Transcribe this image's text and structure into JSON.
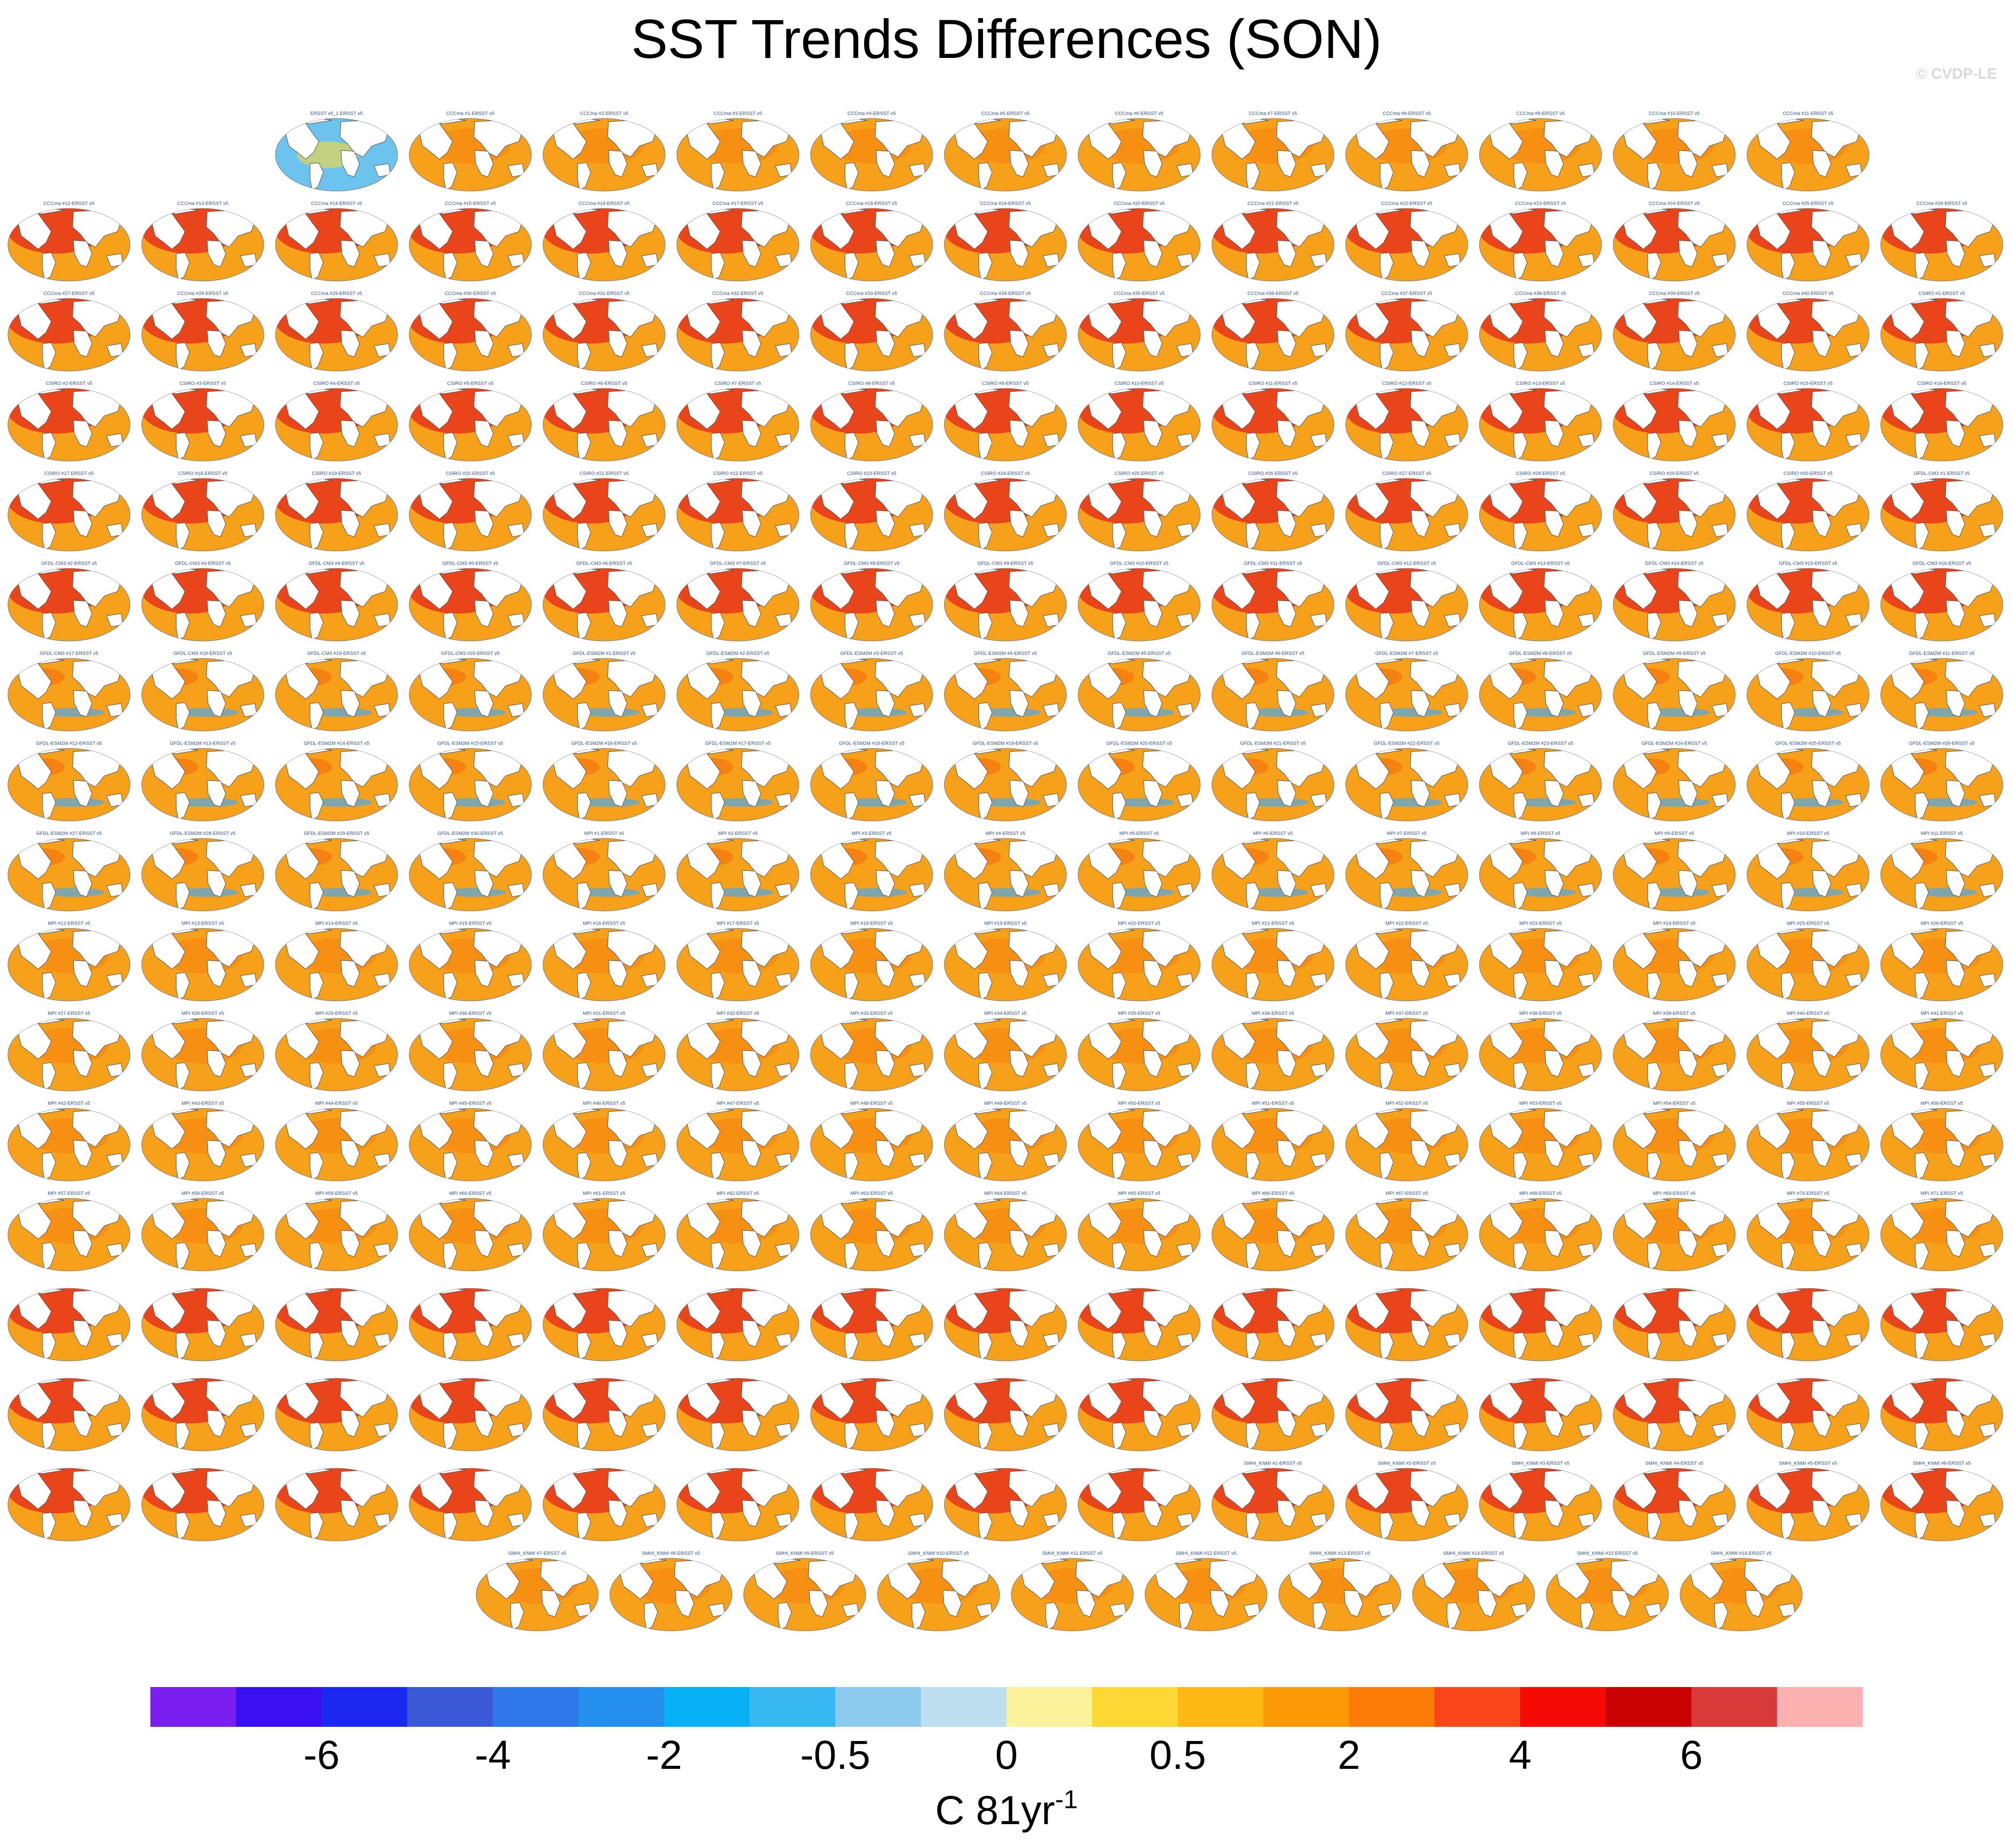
{
  "figure": {
    "title": "SST Trends Differences (SON)",
    "watermark": "© CVDP-LE"
  },
  "colors": {
    "ocean_warm": "#f7a11a",
    "ocean_hot": "#e8341c",
    "ocean_cool": "#6cc3ee",
    "land": "#ffffff",
    "coast": "#555555"
  },
  "chart_data": {
    "type": "heatmap",
    "title": "SST Trends Differences (SON)",
    "panel_type": "global map (Robinson projection)",
    "rows": [
      {
        "row": 1,
        "panels": [
          "ERSST v5_1-ERSST v5",
          "CCCma #1-ERSST v5",
          "CCCma #2-ERSST v5",
          "CCCma #3-ERSST v5",
          "CCCma #4-ERSST v5",
          "CCCma #5-ERSST v5",
          "CCCma #6-ERSST v5",
          "CCCma #7-ERSST v5",
          "CCCma #8-ERSST v5",
          "CCCma #9-ERSST v5",
          "CCCma #10-ERSST v5",
          "CCCma #11-ERSST v5"
        ]
      },
      {
        "row": 2,
        "panels": [
          "CCCma #12-ERSST v5",
          "CCCma #13-ERSST v5",
          "CCCma #14-ERSST v5",
          "CCCma #15-ERSST v5",
          "CCCma #16-ERSST v5",
          "CCCma #17-ERSST v5",
          "CCCma #18-ERSST v5",
          "CCCma #19-ERSST v5",
          "CCCma #20-ERSST v5",
          "CCCma #21-ERSST v5",
          "CCCma #22-ERSST v5",
          "CCCma #23-ERSST v5",
          "CCCma #24-ERSST v5",
          "CCCma #25-ERSST v5",
          "CCCma #26-ERSST v5"
        ]
      },
      {
        "row": 3,
        "panels": [
          "CCCma #27-ERSST v5",
          "CCCma #28-ERSST v5",
          "CCCma #29-ERSST v5",
          "CCCma #30-ERSST v5",
          "CCCma #31-ERSST v5",
          "CCCma #32-ERSST v5",
          "CCCma #33-ERSST v5",
          "CCCma #34-ERSST v5",
          "CCCma #35-ERSST v5",
          "CCCma #36-ERSST v5",
          "CCCma #37-ERSST v5",
          "CCCma #38-ERSST v5",
          "CCCma #39-ERSST v5",
          "CCCma #40-ERSST v5",
          "CSIRO #1-ERSST v5"
        ]
      },
      {
        "row": 4,
        "panels": [
          "CSIRO #2-ERSST v5",
          "CSIRO #3-ERSST v5",
          "CSIRO #4-ERSST v5",
          "CSIRO #5-ERSST v5",
          "CSIRO #6-ERSST v5",
          "CSIRO #7-ERSST v5",
          "CSIRO #8-ERSST v5",
          "CSIRO #9-ERSST v5",
          "CSIRO #10-ERSST v5",
          "CSIRO #11-ERSST v5",
          "CSIRO #12-ERSST v5",
          "CSIRO #13-ERSST v5",
          "CSIRO #14-ERSST v5",
          "CSIRO #15-ERSST v5",
          "CSIRO #16-ERSST v5"
        ]
      },
      {
        "row": 5,
        "panels": [
          "CSIRO #17-ERSST v5",
          "CSIRO #18-ERSST v5",
          "CSIRO #19-ERSST v5",
          "CSIRO #20-ERSST v5",
          "CSIRO #21-ERSST v5",
          "CSIRO #22-ERSST v5",
          "CSIRO #23-ERSST v5",
          "CSIRO #24-ERSST v5",
          "CSIRO #25-ERSST v5",
          "CSIRO #26-ERSST v5",
          "CSIRO #27-ERSST v5",
          "CSIRO #28-ERSST v5",
          "CSIRO #29-ERSST v5",
          "CSIRO #30-ERSST v5",
          "GFDL-CM3 #1-ERSST v5"
        ]
      },
      {
        "row": 6,
        "panels": [
          "GFDL-CM3 #2-ERSST v5",
          "GFDL-CM3 #3-ERSST v5",
          "GFDL-CM3 #4-ERSST v5",
          "GFDL-CM3 #5-ERSST v5",
          "GFDL-CM3 #6-ERSST v5",
          "GFDL-CM3 #7-ERSST v5",
          "GFDL-CM3 #8-ERSST v5",
          "GFDL-CM3 #9-ERSST v5",
          "GFDL-CM3 #10-ERSST v5",
          "GFDL-CM3 #11-ERSST v5",
          "GFDL-CM3 #12-ERSST v5",
          "GFDL-CM3 #13-ERSST v5",
          "GFDL-CM3 #14-ERSST v5",
          "GFDL-CM3 #15-ERSST v5",
          "GFDL-CM3 #16-ERSST v5"
        ]
      },
      {
        "row": 7,
        "panels": [
          "GFDL-CM3 #17-ERSST v5",
          "GFDL-CM3 #18-ERSST v5",
          "GFDL-CM3 #19-ERSST v5",
          "GFDL-CM3 #20-ERSST v5",
          "GFDL-ESM2M #1-ERSST v5",
          "GFDL-ESM2M #2-ERSST v5",
          "GFDL-ESM2M #3-ERSST v5",
          "GFDL-ESM2M #4-ERSST v5",
          "GFDL-ESM2M #5-ERSST v5",
          "GFDL-ESM2M #6-ERSST v5",
          "GFDL-ESM2M #7-ERSST v5",
          "GFDL-ESM2M #8-ERSST v5",
          "GFDL-ESM2M #9-ERSST v5",
          "GFDL-ESM2M #10-ERSST v5",
          "GFDL-ESM2M #11-ERSST v5"
        ]
      },
      {
        "row": 8,
        "panels": [
          "GFDL-ESM2M #12-ERSST v5",
          "GFDL-ESM2M #13-ERSST v5",
          "GFDL-ESM2M #14-ERSST v5",
          "GFDL-ESM2M #15-ERSST v5",
          "GFDL-ESM2M #16-ERSST v5",
          "GFDL-ESM2M #17-ERSST v5",
          "GFDL-ESM2M #18-ERSST v5",
          "GFDL-ESM2M #19-ERSST v5",
          "GFDL-ESM2M #20-ERSST v5",
          "GFDL-ESM2M #21-ERSST v5",
          "GFDL-ESM2M #22-ERSST v5",
          "GFDL-ESM2M #23-ERSST v5",
          "GFDL-ESM2M #24-ERSST v5",
          "GFDL-ESM2M #25-ERSST v5",
          "GFDL-ESM2M #26-ERSST v5"
        ]
      },
      {
        "row": 9,
        "panels": [
          "GFDL-ESM2M #27-ERSST v5",
          "GFDL-ESM2M #28-ERSST v5",
          "GFDL-ESM2M #29-ERSST v5",
          "GFDL-ESM2M #30-ERSST v5",
          "MPI #1-ERSST v5",
          "MPI #2-ERSST v5",
          "MPI #3-ERSST v5",
          "MPI #4-ERSST v5",
          "MPI #5-ERSST v5",
          "MPI #6-ERSST v5",
          "MPI #7-ERSST v5",
          "MPI #8-ERSST v5",
          "MPI #9-ERSST v5",
          "MPI #10-ERSST v5",
          "MPI #11-ERSST v5"
        ]
      },
      {
        "row": 10,
        "panels": [
          "MPI #12-ERSST v5",
          "MPI #13-ERSST v5",
          "MPI #14-ERSST v5",
          "MPI #15-ERSST v5",
          "MPI #16-ERSST v5",
          "MPI #17-ERSST v5",
          "MPI #18-ERSST v5",
          "MPI #19-ERSST v5",
          "MPI #20-ERSST v5",
          "MPI #21-ERSST v5",
          "MPI #22-ERSST v5",
          "MPI #23-ERSST v5",
          "MPI #24-ERSST v5",
          "MPI #25-ERSST v5",
          "MPI #26-ERSST v5"
        ]
      },
      {
        "row": 11,
        "panels": [
          "MPI #27-ERSST v5",
          "MPI #28-ERSST v5",
          "MPI #29-ERSST v5",
          "MPI #30-ERSST v5",
          "MPI #31-ERSST v5",
          "MPI #32-ERSST v5",
          "MPI #33-ERSST v5",
          "MPI #34-ERSST v5",
          "MPI #35-ERSST v5",
          "MPI #36-ERSST v5",
          "MPI #37-ERSST v5",
          "MPI #38-ERSST v5",
          "MPI #39-ERSST v5",
          "MPI #40-ERSST v5",
          "MPI #41-ERSST v5"
        ]
      },
      {
        "row": 12,
        "panels": [
          "MPI #42-ERSST v5",
          "MPI #43-ERSST v5",
          "MPI #44-ERSST v5",
          "MPI #45-ERSST v5",
          "MPI #46-ERSST v5",
          "MPI #47-ERSST v5",
          "MPI #48-ERSST v5",
          "MPI #49-ERSST v5",
          "MPI #50-ERSST v5",
          "MPI #51-ERSST v5",
          "MPI #52-ERSST v5",
          "MPI #53-ERSST v5",
          "MPI #54-ERSST v5",
          "MPI #55-ERSST v5",
          "MPI #56-ERSST v5"
        ]
      },
      {
        "row": 13,
        "panels": [
          "MPI #57-ERSST v5",
          "MPI #58-ERSST v5",
          "MPI #59-ERSST v5",
          "MPI #60-ERSST v5",
          "MPI #61-ERSST v5",
          "MPI #62-ERSST v5",
          "MPI #63-ERSST v5",
          "MPI #64-ERSST v5",
          "MPI #65-ERSST v5",
          "MPI #66-ERSST v5",
          "MPI #67-ERSST v5",
          "MPI #68-ERSST v5",
          "MPI #69-ERSST v5",
          "MPI #70-ERSST v5",
          "MPI #71-ERSST v5"
        ]
      },
      {
        "row": 14,
        "panels": [
          "",
          "",
          "",
          "",
          "",
          "",
          "",
          "",
          "",
          "",
          "",
          "",
          "",
          "",
          ""
        ]
      },
      {
        "row": 15,
        "panels": [
          "",
          "",
          "",
          "",
          "",
          "",
          "",
          "",
          "",
          "",
          "",
          "",
          "",
          "",
          ""
        ]
      },
      {
        "row": 16,
        "panels": [
          "",
          "",
          "",
          "",
          "",
          "",
          "",
          "",
          "",
          "SMHI_KNMI #1-ERSST v5",
          "SMHI_KNMI #2-ERSST v5",
          "SMHI_KNMI #3-ERSST v5",
          "SMHI_KNMI #4-ERSST v5",
          "SMHI_KNMI #5-ERSST v5",
          "SMHI_KNMI #6-ERSST v5"
        ]
      },
      {
        "row": 17,
        "panels": [
          "SMHI_KNMI #7-ERSST v5",
          "SMHI_KNMI #8-ERSST v5",
          "SMHI_KNMI #9-ERSST v5",
          "SMHI_KNMI #10-ERSST v5",
          "SMHI_KNMI #11-ERSST v5",
          "SMHI_KNMI #12-ERSST v5",
          "SMHI_KNMI #13-ERSST v5",
          "SMHI_KNMI #14-ERSST v5",
          "SMHI_KNMI #15-ERSST v5",
          "SMHI_KNMI #16-ERSST v5"
        ]
      }
    ],
    "panel_style": {
      "obs_cool": [
        1
      ],
      "cccma_csiro_gfdlcm3_hot": [
        2,
        3,
        4,
        5,
        6
      ],
      "gfdl_esm2m_mixed": [
        7,
        8,
        9
      ],
      "mpi_warm": [
        9,
        10,
        11,
        12,
        13
      ],
      "hot_north": [
        14,
        15,
        16
      ]
    },
    "colorbar": {
      "colors": [
        "#7b1ff0",
        "#3a10f0",
        "#1a28f0",
        "#3c5ad8",
        "#2f78ea",
        "#2590f0",
        "#08b0f5",
        "#38b8f0",
        "#8ccaee",
        "#bedff0",
        "#fdf29c",
        "#fdd835",
        "#fdb813",
        "#fb9a06",
        "#fb7b06",
        "#f8461a",
        "#f50a06",
        "#cb0202",
        "#d83a3a",
        "#fcb1b1"
      ],
      "tick_labels": [
        "-6",
        "-4",
        "-2",
        "-0.5",
        "0",
        "0.5",
        "2",
        "4",
        "6"
      ],
      "unit_base": "C 81yr",
      "unit_exp": "-1"
    }
  }
}
